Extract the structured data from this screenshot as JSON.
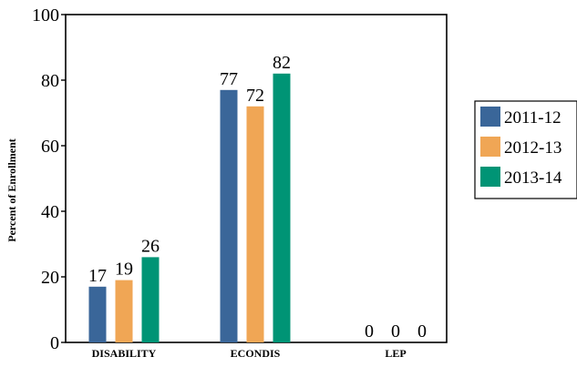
{
  "chart_data": {
    "type": "bar",
    "categories": [
      "DISABILITY",
      "ECONDIS",
      "LEP"
    ],
    "series": [
      {
        "name": "2011-12",
        "values": [
          17,
          77,
          0
        ],
        "color": "#3a6699"
      },
      {
        "name": "2012-13",
        "values": [
          19,
          72,
          0
        ],
        "color": "#f0a655"
      },
      {
        "name": "2013-14",
        "values": [
          26,
          82,
          0
        ],
        "color": "#009475"
      }
    ],
    "title": "",
    "xlabel": "",
    "ylabel": "Percent of Enrollment",
    "ylim": [
      0,
      100
    ],
    "yticks": [
      0,
      20,
      40,
      60,
      80,
      100
    ],
    "grid": false,
    "legend_position": "right"
  }
}
